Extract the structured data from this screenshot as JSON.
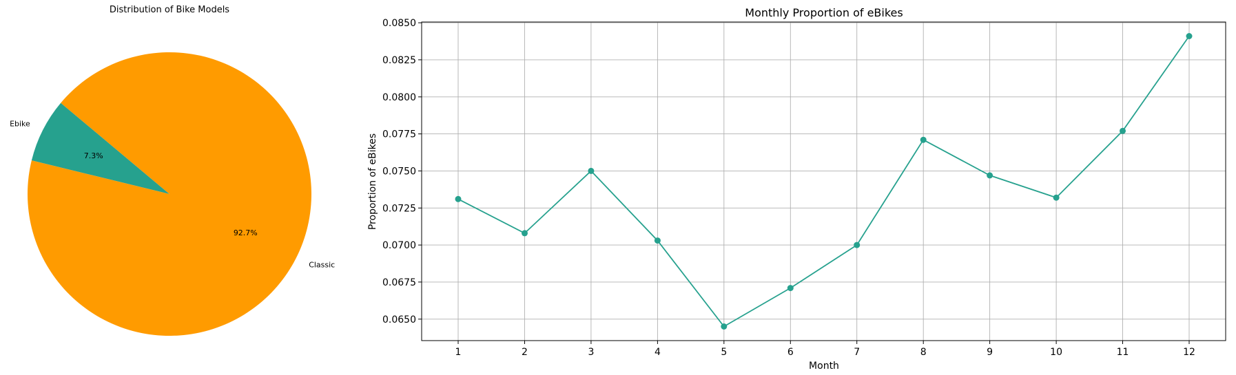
{
  "chart_data": [
    {
      "type": "pie",
      "title": "Distribution of Bike Models",
      "slices": [
        {
          "label": "Ebike",
          "value": 7.3,
          "pct_label": "7.3%",
          "color": "#26a18e"
        },
        {
          "label": "Classic",
          "value": 92.7,
          "pct_label": "92.7%",
          "color": "#ff9b00"
        }
      ]
    },
    {
      "type": "line",
      "title": "Monthly Proportion of eBikes",
      "xlabel": "Month",
      "ylabel": "Proportion of eBikes",
      "x": [
        1,
        2,
        3,
        4,
        5,
        6,
        7,
        8,
        9,
        10,
        11,
        12
      ],
      "x_tick_labels": [
        "1",
        "2",
        "3",
        "4",
        "5",
        "6",
        "7",
        "8",
        "9",
        "10",
        "11",
        "12"
      ],
      "xlim": [
        0.45,
        12.55
      ],
      "ylim": [
        0.06355,
        0.08505
      ],
      "y_ticks": [
        0.065,
        0.0675,
        0.07,
        0.0725,
        0.075,
        0.0775,
        0.08,
        0.0825,
        0.085
      ],
      "y_tick_labels": [
        "0.0650",
        "0.0675",
        "0.0700",
        "0.0725",
        "0.0750",
        "0.0775",
        "0.0800",
        "0.0825",
        "0.0850"
      ],
      "grid": true,
      "series": [
        {
          "values": [
            0.0731,
            0.0708,
            0.075,
            0.0703,
            0.0645,
            0.0671,
            0.07,
            0.0771,
            0.0747,
            0.0732,
            0.0777,
            0.0841
          ],
          "color": "#26a18e",
          "marker": "circle"
        }
      ]
    }
  ]
}
